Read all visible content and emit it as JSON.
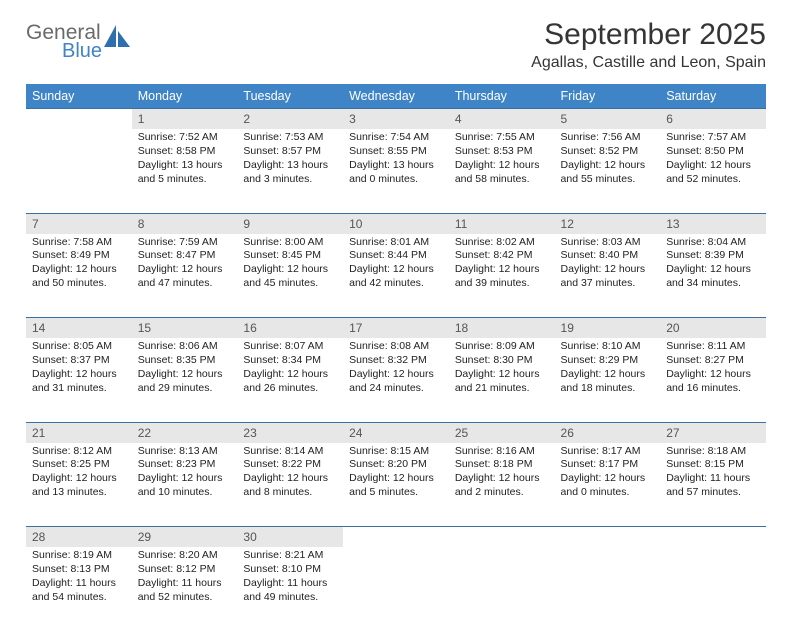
{
  "logo": {
    "text1": "General",
    "text2": "Blue",
    "shape_color": "#2f6fb0"
  },
  "header": {
    "month_title": "September 2025",
    "location": "Agallas, Castille and Leon, Spain"
  },
  "colors": {
    "header_bg": "#3e84c6",
    "header_text": "#ffffff",
    "daynum_bg": "#e7e7e7",
    "daynum_text": "#555555",
    "row_border": "#3b6fa0",
    "page_bg": "#ffffff"
  },
  "weekdays": [
    "Sunday",
    "Monday",
    "Tuesday",
    "Wednesday",
    "Thursday",
    "Friday",
    "Saturday"
  ],
  "weeks": [
    [
      null,
      {
        "day": "1",
        "sunrise": "Sunrise: 7:52 AM",
        "sunset": "Sunset: 8:58 PM",
        "dl1": "Daylight: 13 hours",
        "dl2": "and 5 minutes."
      },
      {
        "day": "2",
        "sunrise": "Sunrise: 7:53 AM",
        "sunset": "Sunset: 8:57 PM",
        "dl1": "Daylight: 13 hours",
        "dl2": "and 3 minutes."
      },
      {
        "day": "3",
        "sunrise": "Sunrise: 7:54 AM",
        "sunset": "Sunset: 8:55 PM",
        "dl1": "Daylight: 13 hours",
        "dl2": "and 0 minutes."
      },
      {
        "day": "4",
        "sunrise": "Sunrise: 7:55 AM",
        "sunset": "Sunset: 8:53 PM",
        "dl1": "Daylight: 12 hours",
        "dl2": "and 58 minutes."
      },
      {
        "day": "5",
        "sunrise": "Sunrise: 7:56 AM",
        "sunset": "Sunset: 8:52 PM",
        "dl1": "Daylight: 12 hours",
        "dl2": "and 55 minutes."
      },
      {
        "day": "6",
        "sunrise": "Sunrise: 7:57 AM",
        "sunset": "Sunset: 8:50 PM",
        "dl1": "Daylight: 12 hours",
        "dl2": "and 52 minutes."
      }
    ],
    [
      {
        "day": "7",
        "sunrise": "Sunrise: 7:58 AM",
        "sunset": "Sunset: 8:49 PM",
        "dl1": "Daylight: 12 hours",
        "dl2": "and 50 minutes."
      },
      {
        "day": "8",
        "sunrise": "Sunrise: 7:59 AM",
        "sunset": "Sunset: 8:47 PM",
        "dl1": "Daylight: 12 hours",
        "dl2": "and 47 minutes."
      },
      {
        "day": "9",
        "sunrise": "Sunrise: 8:00 AM",
        "sunset": "Sunset: 8:45 PM",
        "dl1": "Daylight: 12 hours",
        "dl2": "and 45 minutes."
      },
      {
        "day": "10",
        "sunrise": "Sunrise: 8:01 AM",
        "sunset": "Sunset: 8:44 PM",
        "dl1": "Daylight: 12 hours",
        "dl2": "and 42 minutes."
      },
      {
        "day": "11",
        "sunrise": "Sunrise: 8:02 AM",
        "sunset": "Sunset: 8:42 PM",
        "dl1": "Daylight: 12 hours",
        "dl2": "and 39 minutes."
      },
      {
        "day": "12",
        "sunrise": "Sunrise: 8:03 AM",
        "sunset": "Sunset: 8:40 PM",
        "dl1": "Daylight: 12 hours",
        "dl2": "and 37 minutes."
      },
      {
        "day": "13",
        "sunrise": "Sunrise: 8:04 AM",
        "sunset": "Sunset: 8:39 PM",
        "dl1": "Daylight: 12 hours",
        "dl2": "and 34 minutes."
      }
    ],
    [
      {
        "day": "14",
        "sunrise": "Sunrise: 8:05 AM",
        "sunset": "Sunset: 8:37 PM",
        "dl1": "Daylight: 12 hours",
        "dl2": "and 31 minutes."
      },
      {
        "day": "15",
        "sunrise": "Sunrise: 8:06 AM",
        "sunset": "Sunset: 8:35 PM",
        "dl1": "Daylight: 12 hours",
        "dl2": "and 29 minutes."
      },
      {
        "day": "16",
        "sunrise": "Sunrise: 8:07 AM",
        "sunset": "Sunset: 8:34 PM",
        "dl1": "Daylight: 12 hours",
        "dl2": "and 26 minutes."
      },
      {
        "day": "17",
        "sunrise": "Sunrise: 8:08 AM",
        "sunset": "Sunset: 8:32 PM",
        "dl1": "Daylight: 12 hours",
        "dl2": "and 24 minutes."
      },
      {
        "day": "18",
        "sunrise": "Sunrise: 8:09 AM",
        "sunset": "Sunset: 8:30 PM",
        "dl1": "Daylight: 12 hours",
        "dl2": "and 21 minutes."
      },
      {
        "day": "19",
        "sunrise": "Sunrise: 8:10 AM",
        "sunset": "Sunset: 8:29 PM",
        "dl1": "Daylight: 12 hours",
        "dl2": "and 18 minutes."
      },
      {
        "day": "20",
        "sunrise": "Sunrise: 8:11 AM",
        "sunset": "Sunset: 8:27 PM",
        "dl1": "Daylight: 12 hours",
        "dl2": "and 16 minutes."
      }
    ],
    [
      {
        "day": "21",
        "sunrise": "Sunrise: 8:12 AM",
        "sunset": "Sunset: 8:25 PM",
        "dl1": "Daylight: 12 hours",
        "dl2": "and 13 minutes."
      },
      {
        "day": "22",
        "sunrise": "Sunrise: 8:13 AM",
        "sunset": "Sunset: 8:23 PM",
        "dl1": "Daylight: 12 hours",
        "dl2": "and 10 minutes."
      },
      {
        "day": "23",
        "sunrise": "Sunrise: 8:14 AM",
        "sunset": "Sunset: 8:22 PM",
        "dl1": "Daylight: 12 hours",
        "dl2": "and 8 minutes."
      },
      {
        "day": "24",
        "sunrise": "Sunrise: 8:15 AM",
        "sunset": "Sunset: 8:20 PM",
        "dl1": "Daylight: 12 hours",
        "dl2": "and 5 minutes."
      },
      {
        "day": "25",
        "sunrise": "Sunrise: 8:16 AM",
        "sunset": "Sunset: 8:18 PM",
        "dl1": "Daylight: 12 hours",
        "dl2": "and 2 minutes."
      },
      {
        "day": "26",
        "sunrise": "Sunrise: 8:17 AM",
        "sunset": "Sunset: 8:17 PM",
        "dl1": "Daylight: 12 hours",
        "dl2": "and 0 minutes."
      },
      {
        "day": "27",
        "sunrise": "Sunrise: 8:18 AM",
        "sunset": "Sunset: 8:15 PM",
        "dl1": "Daylight: 11 hours",
        "dl2": "and 57 minutes."
      }
    ],
    [
      {
        "day": "28",
        "sunrise": "Sunrise: 8:19 AM",
        "sunset": "Sunset: 8:13 PM",
        "dl1": "Daylight: 11 hours",
        "dl2": "and 54 minutes."
      },
      {
        "day": "29",
        "sunrise": "Sunrise: 8:20 AM",
        "sunset": "Sunset: 8:12 PM",
        "dl1": "Daylight: 11 hours",
        "dl2": "and 52 minutes."
      },
      {
        "day": "30",
        "sunrise": "Sunrise: 8:21 AM",
        "sunset": "Sunset: 8:10 PM",
        "dl1": "Daylight: 11 hours",
        "dl2": "and 49 minutes."
      },
      null,
      null,
      null,
      null
    ]
  ]
}
